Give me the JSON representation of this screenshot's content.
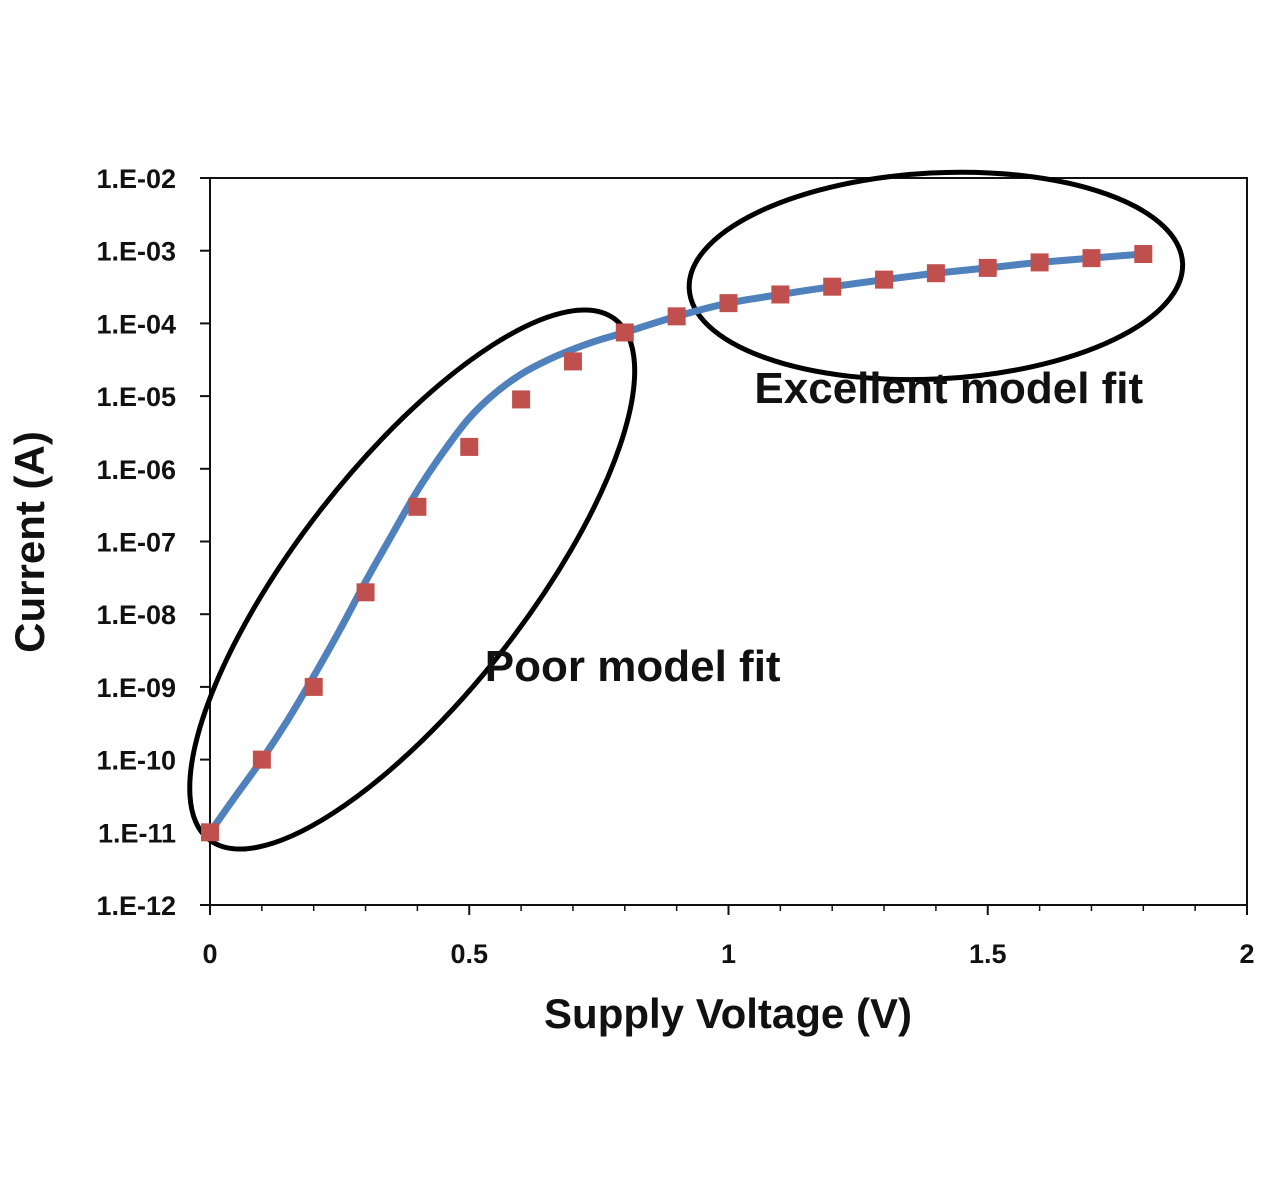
{
  "chart_data": {
    "type": "scatter",
    "title": "",
    "xlabel": "Supply Voltage (V)",
    "ylabel": "Current (A)",
    "xlim": [
      0,
      2
    ],
    "ylim": [
      1e-12,
      0.01
    ],
    "yscale": "log",
    "grid": false,
    "x_ticks": [
      {
        "value": 0,
        "label": "0"
      },
      {
        "value": 0.5,
        "label": "0.5"
      },
      {
        "value": 1,
        "label": "1"
      },
      {
        "value": 1.5,
        "label": "1.5"
      },
      {
        "value": 2,
        "label": "2"
      }
    ],
    "y_ticks": [
      {
        "value": 1e-12,
        "label": "1.E-12"
      },
      {
        "value": 1e-11,
        "label": "1.E-11"
      },
      {
        "value": 1e-10,
        "label": "1.E-10"
      },
      {
        "value": 1e-09,
        "label": "1.E-09"
      },
      {
        "value": 1e-08,
        "label": "1.E-08"
      },
      {
        "value": 1e-07,
        "label": "1.E-07"
      },
      {
        "value": 1e-06,
        "label": "1.E-06"
      },
      {
        "value": 1e-05,
        "label": "1.E-05"
      },
      {
        "value": 0.0001,
        "label": "1.E-04"
      },
      {
        "value": 0.001,
        "label": "1.E-03"
      },
      {
        "value": 0.01,
        "label": "1.E-02"
      }
    ],
    "series": [
      {
        "kind": "markers",
        "color": "#c0504d",
        "x": [
          0,
          0.1,
          0.2,
          0.3,
          0.4,
          0.5,
          0.6,
          0.7,
          0.8,
          0.9,
          1.0,
          1.1,
          1.2,
          1.3,
          1.4,
          1.5,
          1.6,
          1.7,
          1.8
        ],
        "y": [
          1e-11,
          1e-10,
          1e-09,
          2e-08,
          3e-07,
          2e-06,
          9e-06,
          3e-05,
          7.5e-05,
          0.000125,
          0.00019,
          0.00025,
          0.00032,
          0.0004,
          0.00049,
          0.00058,
          0.00069,
          0.00079,
          0.0009
        ]
      },
      {
        "kind": "line",
        "color": "#4f81bd",
        "x": [
          0,
          0.05,
          0.1,
          0.15,
          0.2,
          0.25,
          0.3,
          0.35,
          0.4,
          0.45,
          0.5,
          0.55,
          0.6,
          0.65,
          0.7,
          0.75,
          0.8,
          0.9,
          1.0,
          1.1,
          1.2,
          1.3,
          1.4,
          1.5,
          1.6,
          1.7,
          1.8
        ],
        "y": [
          1e-11,
          3.2e-11,
          1e-10,
          3.5e-10,
          1.4e-09,
          6e-09,
          2.8e-08,
          1.2e-07,
          5e-07,
          1.7e-06,
          5e-06,
          1.1e-05,
          2e-05,
          3.1e-05,
          4.4e-05,
          5.9e-05,
          7.5e-05,
          0.000125,
          0.00019,
          0.00025,
          0.00032,
          0.0004,
          0.00049,
          0.00058,
          0.00069,
          0.00079,
          0.0009
        ]
      }
    ],
    "annotations": [
      {
        "text": "Poor model fit",
        "label_at": [
          0.53,
          1.2e-09
        ],
        "ellipse_center": [
          0.39,
          3e-08
        ],
        "ellipse_angle_deg": -52
      },
      {
        "text": "Excellent model fit",
        "label_at": [
          1.05,
          8e-06
        ],
        "ellipse_center": [
          1.4,
          0.00045
        ],
        "ellipse_angle_deg": -3
      }
    ],
    "colors": {
      "marker": "#c0504d",
      "line": "#4f81bd",
      "axis": "#111111",
      "ellipse": "#000000"
    }
  }
}
